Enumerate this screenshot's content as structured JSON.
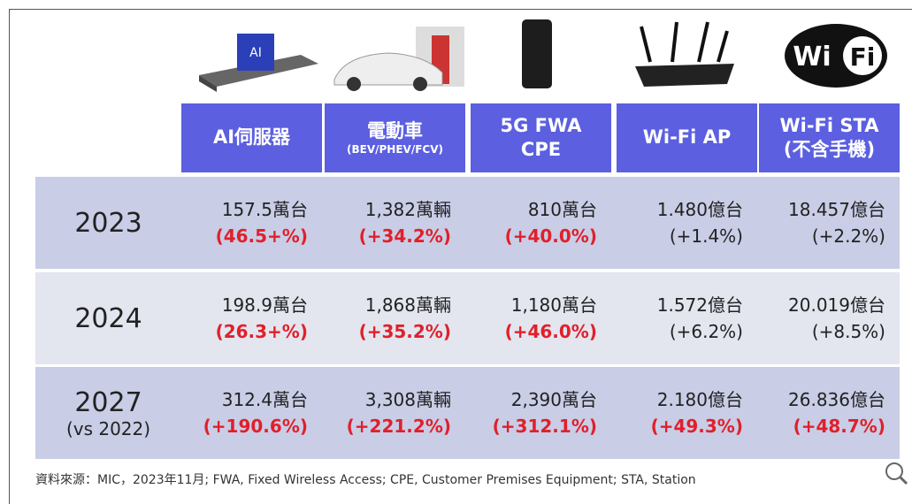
{
  "table": {
    "columns": [
      {
        "title": [
          "AI伺服器"
        ]
      },
      {
        "title": [
          "電動車"
        ],
        "subtitle": "(BEV/PHEV/FCV)"
      },
      {
        "title": [
          "5G FWA",
          "CPE"
        ]
      },
      {
        "title": [
          "Wi-Fi AP"
        ]
      },
      {
        "title": [
          "Wi-Fi STA",
          "(不含手機)"
        ]
      }
    ],
    "rows": [
      {
        "label": [
          "2023"
        ],
        "cells": [
          {
            "value": "157.5萬台",
            "change": "(46.5+%)",
            "change_color": "red"
          },
          {
            "value": "1,382萬輛",
            "change": "(+34.2%)",
            "change_color": "red"
          },
          {
            "value": "810萬台",
            "change": "(+40.0%)",
            "change_color": "red"
          },
          {
            "value": "1.480億台",
            "change": "(+1.4%)",
            "change_color": "black"
          },
          {
            "value": "18.457億台",
            "change": "(+2.2%)",
            "change_color": "black"
          }
        ]
      },
      {
        "label": [
          "2024"
        ],
        "cells": [
          {
            "value": "198.9萬台",
            "change": "(26.3+%)",
            "change_color": "red"
          },
          {
            "value": "1,868萬輛",
            "change": "(+35.2%)",
            "change_color": "red"
          },
          {
            "value": "1,180萬台",
            "change": "(+46.0%)",
            "change_color": "red"
          },
          {
            "value": "1.572億台",
            "change": "(+6.2%)",
            "change_color": "black"
          },
          {
            "value": "20.019億台",
            "change": "(+8.5%)",
            "change_color": "black"
          }
        ]
      },
      {
        "label": [
          "2027",
          "(vs 2022)"
        ],
        "cells": [
          {
            "value": "312.4萬台",
            "change": "(+190.6%)",
            "change_color": "red"
          },
          {
            "value": "3,308萬輛",
            "change": "(+221.2%)",
            "change_color": "red"
          },
          {
            "value": "2,390萬台",
            "change": "(+312.1%)",
            "change_color": "red"
          },
          {
            "value": "2.180億台",
            "change": "(+49.3%)",
            "change_color": "red"
          },
          {
            "value": "26.836億台",
            "change": "(+48.7%)",
            "change_color": "red"
          }
        ]
      }
    ]
  },
  "source": "資料來源：MIC，2023年11月; FWA, Fixed Wireless Access; CPE, Customer Premises Equipment; STA, Station"
}
